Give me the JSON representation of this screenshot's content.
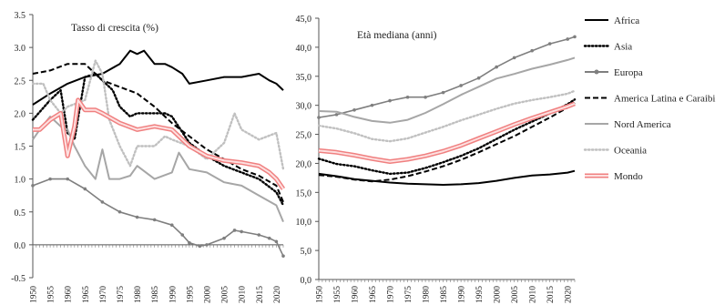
{
  "chart_data": [
    {
      "type": "line",
      "title": "Tasso di crescita (%)",
      "ylim": [
        -0.5,
        3.5
      ],
      "yticks": [
        "-0.5",
        "0.0",
        "0.5",
        "1.0",
        "1.5",
        "2.0",
        "2.5",
        "3.0",
        "3.5"
      ],
      "xlim": [
        1950,
        2022
      ],
      "xticks": [
        "1950",
        "1955",
        "1960",
        "1965",
        "1970",
        "1975",
        "1980",
        "1985",
        "1990",
        "1995",
        "2000",
        "2005",
        "2010",
        "2015",
        "2020"
      ],
      "series": [
        {
          "name": "Africa",
          "x": [
            1950,
            1955,
            1960,
            1965,
            1970,
            1975,
            1978,
            1980,
            1982,
            1985,
            1988,
            1990,
            1993,
            1995,
            2000,
            2005,
            2010,
            2015,
            2018,
            2020,
            2022
          ],
          "y": [
            2.13,
            2.3,
            2.45,
            2.55,
            2.6,
            2.75,
            2.95,
            2.9,
            2.95,
            2.75,
            2.75,
            2.7,
            2.6,
            2.45,
            2.5,
            2.55,
            2.55,
            2.6,
            2.5,
            2.45,
            2.35
          ]
        },
        {
          "name": "Asia",
          "x": [
            1950,
            1955,
            1958,
            1960,
            1962,
            1965,
            1968,
            1970,
            1973,
            1975,
            1978,
            1980,
            1985,
            1988,
            1990,
            1995,
            2000,
            2005,
            2010,
            2015,
            2020,
            2022
          ],
          "y": [
            1.9,
            2.2,
            2.35,
            1.7,
            1.6,
            2.55,
            2.6,
            2.5,
            2.35,
            2.1,
            1.95,
            2.0,
            2.0,
            2.0,
            1.95,
            1.55,
            1.35,
            1.2,
            1.1,
            1.0,
            0.8,
            0.6
          ]
        },
        {
          "name": "Europa",
          "x": [
            1950,
            1955,
            1960,
            1965,
            1970,
            1975,
            1980,
            1985,
            1990,
            1993,
            1995,
            1998,
            2000,
            2005,
            2008,
            2010,
            2015,
            2018,
            2020,
            2022
          ],
          "y": [
            0.9,
            1.0,
            1.0,
            0.85,
            0.65,
            0.5,
            0.42,
            0.38,
            0.3,
            0.15,
            0.03,
            -0.02,
            0.0,
            0.1,
            0.22,
            0.2,
            0.15,
            0.1,
            0.05,
            -0.17
          ]
        },
        {
          "name": "America Latina e Caraibi",
          "x": [
            1950,
            1955,
            1960,
            1965,
            1970,
            1975,
            1980,
            1985,
            1990,
            1995,
            2000,
            2005,
            2010,
            2015,
            2020,
            2022
          ],
          "y": [
            2.6,
            2.65,
            2.75,
            2.75,
            2.5,
            2.4,
            2.3,
            2.1,
            1.85,
            1.65,
            1.45,
            1.3,
            1.15,
            1.05,
            0.9,
            0.65
          ]
        },
        {
          "name": "Nord America",
          "x": [
            1950,
            1952,
            1955,
            1958,
            1960,
            1962,
            1965,
            1968,
            1970,
            1972,
            1975,
            1978,
            1980,
            1985,
            1990,
            1992,
            1995,
            2000,
            2005,
            2010,
            2015,
            2020,
            2022
          ],
          "y": [
            1.6,
            1.75,
            1.95,
            1.8,
            1.75,
            1.5,
            1.2,
            1.0,
            1.45,
            1.0,
            1.0,
            1.05,
            1.2,
            1.0,
            1.1,
            1.4,
            1.15,
            1.1,
            0.95,
            0.9,
            0.75,
            0.6,
            0.35
          ]
        },
        {
          "name": "Oceania",
          "x": [
            1950,
            1953,
            1955,
            1958,
            1960,
            1965,
            1968,
            1970,
            1972,
            1975,
            1978,
            1980,
            1985,
            1988,
            1990,
            1995,
            2000,
            2005,
            2008,
            2010,
            2015,
            2020,
            2022
          ],
          "y": [
            2.45,
            2.45,
            2.2,
            2.0,
            2.1,
            2.2,
            2.8,
            2.6,
            1.9,
            1.5,
            1.2,
            1.5,
            1.5,
            1.65,
            1.6,
            1.5,
            1.3,
            1.55,
            2.0,
            1.75,
            1.6,
            1.7,
            1.15
          ]
        },
        {
          "name": "Mondo",
          "x": [
            1950,
            1952,
            1955,
            1958,
            1960,
            1962,
            1963,
            1965,
            1968,
            1970,
            1975,
            1980,
            1985,
            1990,
            1993,
            1995,
            2000,
            2005,
            2010,
            2015,
            2018,
            2020,
            2022
          ],
          "y": [
            1.75,
            1.75,
            1.9,
            2.0,
            1.35,
            1.8,
            2.2,
            2.05,
            2.05,
            2.0,
            1.85,
            1.75,
            1.8,
            1.75,
            1.6,
            1.5,
            1.35,
            1.28,
            1.25,
            1.2,
            1.1,
            1.0,
            0.85
          ]
        }
      ]
    },
    {
      "type": "line",
      "title": "Età mediana (anni)",
      "ylim": [
        0,
        45
      ],
      "yticks": [
        "0,0",
        "5,0",
        "10,0",
        "15,0",
        "20,0",
        "25,0",
        "30,0",
        "35,0",
        "40,0",
        "45,0"
      ],
      "xlim": [
        1950,
        2022
      ],
      "xticks": [
        "1950",
        "1955",
        "1960",
        "1965",
        "1970",
        "1975",
        "1980",
        "1985",
        "1990",
        "1995",
        "2000",
        "2005",
        "2010",
        "2015",
        "2020"
      ],
      "series": [
        {
          "name": "Africa",
          "x": [
            1950,
            1955,
            1960,
            1965,
            1970,
            1975,
            1980,
            1985,
            1990,
            1995,
            2000,
            2005,
            2010,
            2015,
            2020,
            2022
          ],
          "y": [
            18.2,
            17.8,
            17.3,
            17.0,
            16.7,
            16.5,
            16.4,
            16.3,
            16.4,
            16.6,
            17.0,
            17.5,
            17.9,
            18.1,
            18.4,
            18.7
          ]
        },
        {
          "name": "Asia",
          "x": [
            1950,
            1955,
            1960,
            1965,
            1970,
            1975,
            1980,
            1985,
            1990,
            1995,
            2000,
            2005,
            2010,
            2015,
            2020,
            2022
          ],
          "y": [
            20.8,
            19.9,
            19.5,
            18.8,
            18.2,
            18.4,
            19.2,
            20.2,
            21.3,
            22.6,
            24.2,
            25.8,
            27.2,
            28.6,
            30.2,
            31.0
          ]
        },
        {
          "name": "Europa",
          "x": [
            1950,
            1955,
            1960,
            1965,
            1970,
            1975,
            1980,
            1985,
            1990,
            1995,
            2000,
            2005,
            2010,
            2015,
            2020,
            2022
          ],
          "y": [
            27.9,
            28.4,
            29.2,
            30.0,
            30.8,
            31.4,
            31.4,
            32.2,
            33.4,
            34.7,
            36.6,
            38.2,
            39.4,
            40.6,
            41.4,
            41.8
          ]
        },
        {
          "name": "America Latina e Caraibi",
          "x": [
            1950,
            1955,
            1960,
            1965,
            1970,
            1975,
            1980,
            1985,
            1990,
            1995,
            2000,
            2005,
            2010,
            2015,
            2020,
            2022
          ],
          "y": [
            18.0,
            17.7,
            17.2,
            16.9,
            17.2,
            17.8,
            18.6,
            19.5,
            20.6,
            21.9,
            23.3,
            24.7,
            26.3,
            27.9,
            29.6,
            30.4
          ]
        },
        {
          "name": "Nord America",
          "x": [
            1950,
            1955,
            1960,
            1965,
            1970,
            1975,
            1980,
            1985,
            1990,
            1995,
            2000,
            2005,
            2010,
            2015,
            2020,
            2022
          ],
          "y": [
            29.0,
            28.9,
            28.0,
            27.3,
            27.0,
            27.5,
            28.7,
            30.2,
            31.8,
            33.2,
            34.6,
            35.4,
            36.3,
            37.0,
            37.8,
            38.2
          ]
        },
        {
          "name": "Oceania",
          "x": [
            1950,
            1955,
            1960,
            1965,
            1970,
            1975,
            1980,
            1985,
            1990,
            1995,
            2000,
            2005,
            2010,
            2015,
            2020,
            2022
          ],
          "y": [
            26.5,
            26.0,
            25.2,
            24.2,
            23.8,
            24.3,
            25.3,
            26.3,
            27.4,
            28.4,
            29.4,
            30.3,
            30.9,
            31.4,
            32.0,
            32.5
          ]
        },
        {
          "name": "Mondo",
          "x": [
            1950,
            1955,
            1960,
            1965,
            1970,
            1975,
            1980,
            1985,
            1990,
            1995,
            2000,
            2005,
            2010,
            2015,
            2020,
            2022
          ],
          "y": [
            22.2,
            21.9,
            21.4,
            20.8,
            20.3,
            20.7,
            21.3,
            22.1,
            23.1,
            24.3,
            25.5,
            26.7,
            27.8,
            28.8,
            29.8,
            30.3
          ]
        }
      ]
    }
  ],
  "legend": [
    {
      "name": "Africa",
      "color": "#000000",
      "style": "solid"
    },
    {
      "name": "Asia",
      "color": "#000000",
      "style": "dotted"
    },
    {
      "name": "Europa",
      "color": "#7f7f7f",
      "style": "marker"
    },
    {
      "name": "America Latina e Caraibi",
      "color": "#000000",
      "style": "dashed"
    },
    {
      "name": "Nord America",
      "color": "#a6a6a6",
      "style": "solid"
    },
    {
      "name": "Oceania",
      "color": "#c0c0c0",
      "style": "dotted"
    },
    {
      "name": "Mondo",
      "color": "#f4a0a0",
      "style": "double"
    }
  ]
}
